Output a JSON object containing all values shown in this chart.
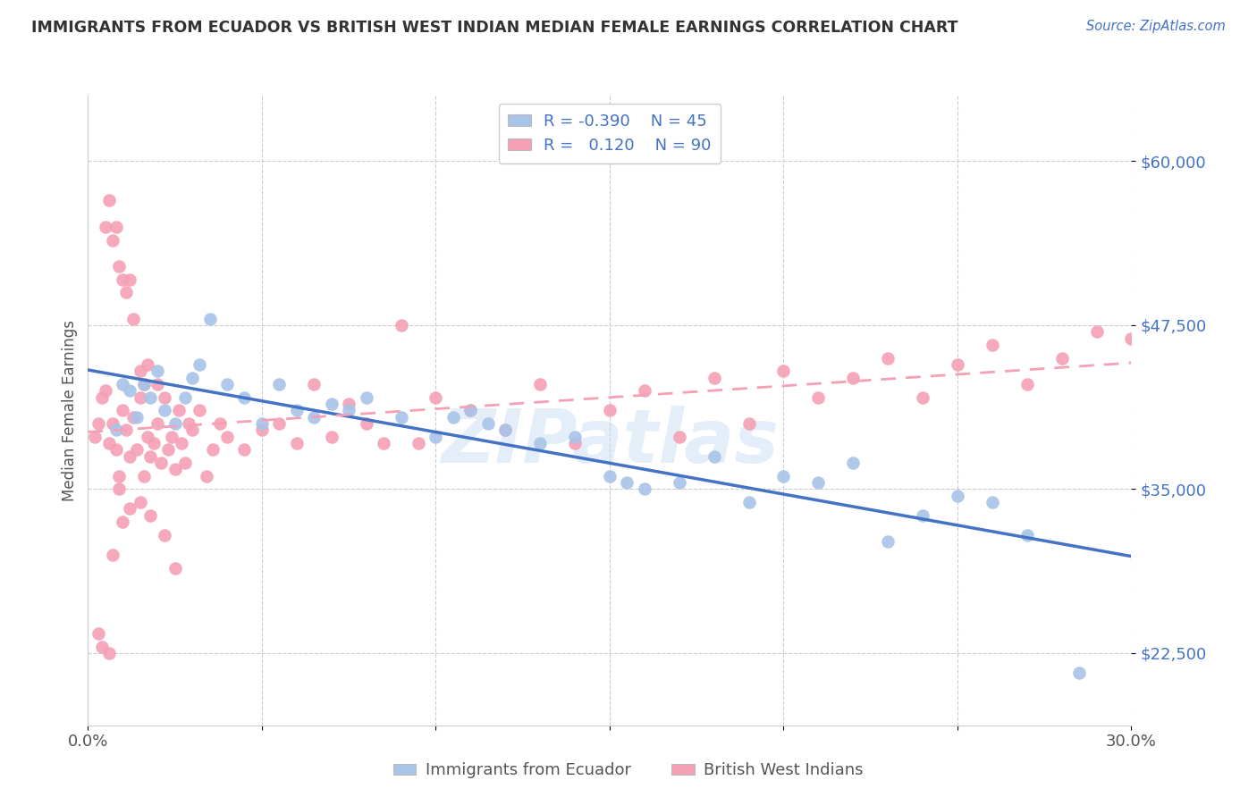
{
  "title": "IMMIGRANTS FROM ECUADOR VS BRITISH WEST INDIAN MEDIAN FEMALE EARNINGS CORRELATION CHART",
  "source": "Source: ZipAtlas.com",
  "ylabel": "Median Female Earnings",
  "y_ticks": [
    22500,
    35000,
    47500,
    60000
  ],
  "y_tick_labels": [
    "$22,500",
    "$35,000",
    "$47,500",
    "$60,000"
  ],
  "xlim": [
    0.0,
    0.3
  ],
  "ylim": [
    17000,
    65000
  ],
  "blue_color": "#4472c4",
  "pink_color": "#f08080",
  "blue_scatter_color": "#a8c4e8",
  "pink_scatter_color": "#f5a0b5",
  "watermark": "ZIPatlas",
  "legend_r1": "-0.390",
  "legend_n1": "45",
  "legend_r2": "0.120",
  "legend_n2": "90",
  "label_ecuador": "Immigrants from Ecuador",
  "label_bwi": "British West Indians",
  "ecuador_x": [
    0.008,
    0.01,
    0.012,
    0.014,
    0.016,
    0.018,
    0.02,
    0.022,
    0.025,
    0.028,
    0.03,
    0.032,
    0.035,
    0.04,
    0.045,
    0.05,
    0.055,
    0.06,
    0.065,
    0.07,
    0.075,
    0.08,
    0.09,
    0.1,
    0.105,
    0.11,
    0.115,
    0.12,
    0.13,
    0.14,
    0.15,
    0.155,
    0.16,
    0.17,
    0.18,
    0.19,
    0.2,
    0.21,
    0.22,
    0.23,
    0.24,
    0.25,
    0.26,
    0.27,
    0.285
  ],
  "ecuador_y": [
    39500,
    43000,
    42500,
    40500,
    43000,
    42000,
    44000,
    41000,
    40000,
    42000,
    43500,
    44500,
    48000,
    43000,
    42000,
    40000,
    43000,
    41000,
    40500,
    41500,
    41000,
    42000,
    40500,
    39000,
    40500,
    41000,
    40000,
    39500,
    38500,
    39000,
    36000,
    35500,
    35000,
    35500,
    37500,
    34000,
    36000,
    35500,
    37000,
    31000,
    33000,
    34500,
    34000,
    31500,
    21000
  ],
  "bwi_x": [
    0.002,
    0.003,
    0.004,
    0.005,
    0.005,
    0.006,
    0.006,
    0.007,
    0.007,
    0.008,
    0.008,
    0.009,
    0.009,
    0.01,
    0.01,
    0.011,
    0.011,
    0.012,
    0.012,
    0.013,
    0.013,
    0.014,
    0.015,
    0.015,
    0.016,
    0.016,
    0.017,
    0.017,
    0.018,
    0.019,
    0.02,
    0.02,
    0.021,
    0.022,
    0.023,
    0.024,
    0.025,
    0.026,
    0.027,
    0.028,
    0.029,
    0.03,
    0.032,
    0.034,
    0.036,
    0.038,
    0.04,
    0.045,
    0.05,
    0.055,
    0.06,
    0.065,
    0.07,
    0.075,
    0.08,
    0.085,
    0.09,
    0.095,
    0.1,
    0.11,
    0.12,
    0.13,
    0.14,
    0.15,
    0.16,
    0.17,
    0.18,
    0.19,
    0.2,
    0.21,
    0.22,
    0.23,
    0.24,
    0.25,
    0.26,
    0.27,
    0.28,
    0.29,
    0.3,
    0.025,
    0.018,
    0.022,
    0.01,
    0.004,
    0.006,
    0.003,
    0.007,
    0.009,
    0.012,
    0.015
  ],
  "bwi_y": [
    39000,
    40000,
    42000,
    42500,
    55000,
    38500,
    57000,
    40000,
    54000,
    38000,
    55000,
    36000,
    52000,
    41000,
    51000,
    39500,
    50000,
    37500,
    51000,
    40500,
    48000,
    38000,
    42000,
    44000,
    36000,
    43000,
    39000,
    44500,
    37500,
    38500,
    40000,
    43000,
    37000,
    42000,
    38000,
    39000,
    36500,
    41000,
    38500,
    37000,
    40000,
    39500,
    41000,
    36000,
    38000,
    40000,
    39000,
    38000,
    39500,
    40000,
    38500,
    43000,
    39000,
    41500,
    40000,
    38500,
    47500,
    38500,
    42000,
    41000,
    39500,
    43000,
    38500,
    41000,
    42500,
    39000,
    43500,
    40000,
    44000,
    42000,
    43500,
    45000,
    42000,
    44500,
    46000,
    43000,
    45000,
    47000,
    46500,
    29000,
    33000,
    31500,
    32500,
    23000,
    22500,
    24000,
    30000,
    35000,
    33500,
    34000
  ]
}
